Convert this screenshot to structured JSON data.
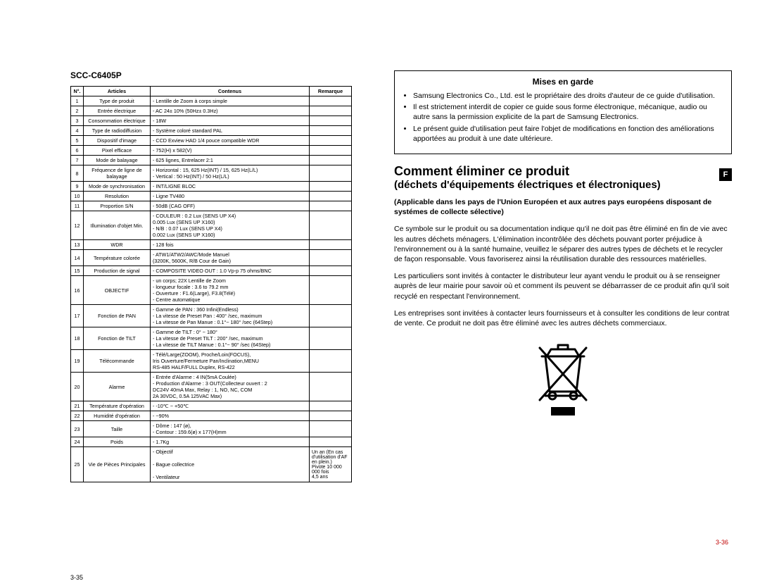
{
  "left": {
    "product_code": "SCC-C6405P",
    "headers": {
      "num": "N°.",
      "articles": "Articles",
      "contenus": "Contenus",
      "remarque": "Remarque"
    },
    "rows": [
      {
        "n": "1",
        "a": "Type de produit",
        "c": "- Lentille de Zoom à corps simple",
        "r": ""
      },
      {
        "n": "2",
        "a": "Entrée électrique",
        "c": "- AC 24± 10% (50Hz± 0.3Hz)",
        "r": ""
      },
      {
        "n": "3",
        "a": "Consommation électrique",
        "c": "- 18W",
        "r": ""
      },
      {
        "n": "4",
        "a": "Type de radiodiffusion",
        "c": "- Système coloré standard PAL",
        "r": ""
      },
      {
        "n": "5",
        "a": "Dispositif d'image",
        "c": "- CCD Exview HAD 1/4 pouce compatible WDR",
        "r": ""
      },
      {
        "n": "6",
        "a": "Pixel efficace",
        "c": "- 752(H) x 582(V)",
        "r": ""
      },
      {
        "n": "7",
        "a": "Mode de balayage",
        "c": "- 625 lignes, Entrelacer 2:1",
        "r": ""
      },
      {
        "n": "8",
        "a": "Fréquence de ligne de balayage",
        "c": "- Horizontal : 15, 625 Hz(INT) / 15, 625 Hz(L/L)\n- Vertical    : 50 Hz(INT) / 50 Hz(L/L)",
        "r": ""
      },
      {
        "n": "9",
        "a": "Mode de synchronisation",
        "c": "- INT/LIGNE BLOC",
        "r": ""
      },
      {
        "n": "10",
        "a": "Resolution",
        "c": "- Ligne TV480",
        "r": ""
      },
      {
        "n": "11",
        "a": "Proportion S/N",
        "c": "- 50dB (CAG OFF)",
        "r": ""
      },
      {
        "n": "12",
        "a": "Illumination d'objet Min.",
        "c": "- COULEUR : 0.2 Lux (SENS UP X4)\n                     0.005 Lux (SENS UP X160)\n- N/B          : 0.07 Lux (SENS UP X4)\n                     0.002 Lux (SENS UP X160)",
        "r": ""
      },
      {
        "n": "13",
        "a": "WDR",
        "c": "- 128 fois",
        "r": ""
      },
      {
        "n": "14",
        "a": "Température colorée",
        "c": "- ATW1/ATW2/AWC/Mode Manuel\n  (3200K, 5600K, R/B Cour de Gain)",
        "r": ""
      },
      {
        "n": "15",
        "a": "Production de signal",
        "c": "- COMPOSITE VIDEO OUT : 1.0 Vp-p 75 ohms/BNC",
        "r": ""
      },
      {
        "n": "16",
        "a": "OBJECTIF",
        "c": "- un corps; 22X Lentille de Zoom\n- longueur focale : 3.6 to 79.2 mm\n- Ouverture : F1.6(Large), F3.8(Télé)\n- Centre automatique",
        "r": ""
      },
      {
        "n": "17",
        "a": "Fonction de PAN",
        "c": "- Gamme de PAN : 360 Infini(Endless)\n- La vitesse de Preset Pan : 400° /sec, maximum\n- La vitesse de Pan Manue : 0.1°~ 180° /sec (64Step)",
        "r": ""
      },
      {
        "n": "18",
        "a": "Fonction de TILT",
        "c": "- Gamme de TILT : 0° ~ 180°\n- La vitesse de Preset TILT : 200° /sec, maximum\n- La vitesse de TILT Manue : 0.1°~ 90° /sec (64Step)",
        "r": ""
      },
      {
        "n": "19",
        "a": "Télécommande",
        "c": "- Télé/Large(ZOOM), Proche/Loin(FOCUS),\n  Iris Ouverture/Fermeture Pan/Inclination,MENU\n  RS-485 HALF/FULL Duplex, RS-422",
        "r": ""
      },
      {
        "n": "20",
        "a": "Alarme",
        "c": "- Entrée d'Alarme : 4 IN(5mA Coulée)\n- Production d'Alarme : 3 OUT(Collecteur ouvert : 2\n  DC24V 40mA Max, Relay : 1, NO, NC, COM\n  2A 30VDC, 0.5A 125VAC Max)",
        "r": ""
      },
      {
        "n": "21",
        "a": "Température d'opération",
        "c": "- -10℃ ~ +50℃",
        "r": ""
      },
      {
        "n": "22",
        "a": "Humidité d'opération",
        "c": "- ~90%",
        "r": ""
      },
      {
        "n": "23",
        "a": "Taille",
        "c": "- Dôme : 147 (ø),\n- Contour : 159.6(ø) x 177(H)mm",
        "r": ""
      },
      {
        "n": "24",
        "a": "Poids",
        "c": "- 1.7Kg",
        "r": ""
      },
      {
        "n": "25",
        "a": "Vie de Pièces Principales",
        "c": "- Objectif\n\n- Bague collectrice\n\n- Ventilateur",
        "r": "Un an (En cas d'utilisation d'AF en plein.)\nPivote 10 000 000 fois\n4,5 ans"
      }
    ],
    "page_number": "3-35"
  },
  "right": {
    "warning": {
      "title": "Mises en garde",
      "items": [
        "Samsung Electronics Co., Ltd. est le propriétaire des droits d'auteur de ce guide d'utilisation.",
        "Il est strictement interdit de copier ce guide sous forme électronique, mécanique, audio ou autre sans la permission explicite de la part de Samsung Electronics.",
        "Le présent guide d'utilisation peut faire l'objet de modifications en fonction des améliorations apportées au produit à une date ultérieure."
      ]
    },
    "heading_main": "Comment éliminer ce produit",
    "heading_sub": "(déchets d'équipements électriques et électroniques)",
    "badge": "F",
    "applicable": "(Applicable dans les pays de l'Union Européen et aux autres pays européens disposant de systémes de collecte sélective)",
    "paragraphs": [
      "Ce symbole sur le produit ou sa documentation indique qu'il ne doit pas être éliminé en fin de vie avec les autres déchets ménagers. L'élimination incontrôlée des déchets pouvant porter préjudice à l'environnement ou à la santé humaine, veuillez le séparer des autres types de déchets et le recycler de façon responsable. Vous favoriserez ainsi la réutilisation durable des ressources matérielles.",
      "Les particuliers sont invités à contacter le distributeur leur ayant vendu le produit ou à se renseigner auprès de leur mairie pour savoir où et comment ils peuvent se débarrasser de ce produit afin qu'il soit recyclé en respectant l'environnement.",
      "Les entreprises sont invitées à contacter leurs fournisseurs et à consulter les conditions de leur contrat de vente. Ce produit ne doit pas être éliminé avec les autres déchets commerciaux."
    ],
    "page_number": "3-36"
  },
  "colors": {
    "text": "#000000",
    "page_num_right": "#c00000",
    "background": "#ffffff"
  }
}
